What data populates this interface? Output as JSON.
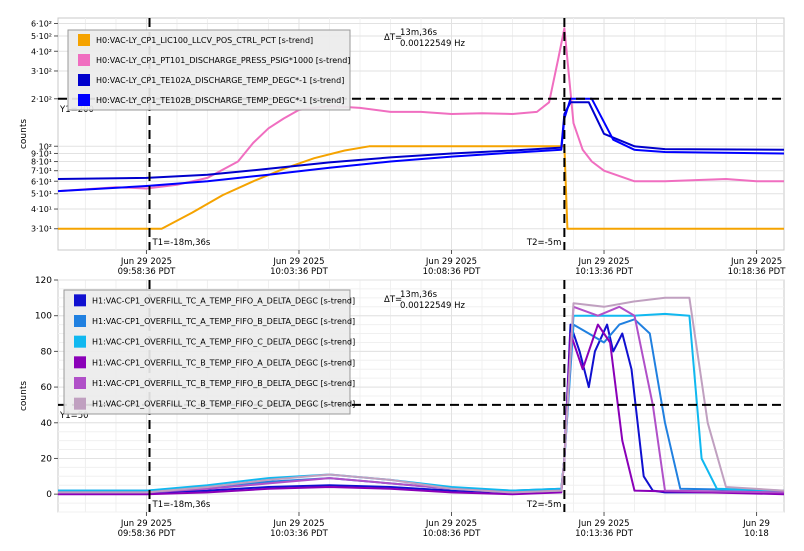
{
  "chart_data": [
    {
      "type": "line",
      "ylabel": "counts",
      "yscale": "log",
      "ylim": [
        22,
        650
      ],
      "y_ticks": [
        {
          "value": 30,
          "label": "3·10¹"
        },
        {
          "value": 40,
          "label": "4·10¹"
        },
        {
          "value": 50,
          "label": "5·10¹"
        },
        {
          "value": 60,
          "label": "6·10¹"
        },
        {
          "value": 70,
          "label": "7·10¹"
        },
        {
          "value": 80,
          "label": "8·10¹"
        },
        {
          "value": 90,
          "label": "9·10¹"
        },
        {
          "value": 100,
          "label": "10²"
        },
        {
          "value": 200,
          "label": "2·10²"
        },
        {
          "value": 300,
          "label": "3·10²"
        },
        {
          "value": 400,
          "label": "4·10²"
        },
        {
          "value": 500,
          "label": "5·10²"
        },
        {
          "value": 600,
          "label": "6·10²"
        }
      ],
      "x_ticks": [
        {
          "value": 0,
          "date": "Jun 29 2025",
          "time": "09:58:36 PDT"
        },
        {
          "value": 5,
          "date": "Jun 29 2025",
          "time": "10:03:36 PDT"
        },
        {
          "value": 10,
          "date": "Jun 29 2025",
          "time": "10:08:36 PDT"
        },
        {
          "value": 15,
          "date": "Jun 29 2025",
          "time": "10:13:36 PDT"
        },
        {
          "value": 20,
          "date": "Jun 29 2025",
          "time": "10:18:36 PDT"
        }
      ],
      "xlim": [
        -2.9,
        20.9
      ],
      "cursor_y": {
        "value": 200,
        "label": "Y1=200"
      },
      "cursor_x1": {
        "value": 0.1,
        "label": "T1=-18m,36s"
      },
      "cursor_x2": {
        "value": 13.7,
        "label": "T2=-5m"
      },
      "delta": {
        "prefix": "ΔT=",
        "time": "13m,36s",
        "freq": "0.00122549 Hz"
      },
      "series": [
        {
          "name": "H0:VAC-LY_CP1_LIC100_LLCV_POS_CTRL_PCT [s-trend]",
          "color": "#f5a300",
          "x": [
            -2.9,
            0.1,
            0.5,
            1.5,
            2.5,
            3.5,
            4.5,
            5.5,
            6.5,
            7.3,
            9.9,
            10.2,
            13.7,
            13.8,
            20.9
          ],
          "y": [
            30,
            30,
            30,
            38,
            49,
            60,
            72,
            84,
            94,
            100,
            100,
            100,
            100,
            30,
            30
          ]
        },
        {
          "name": "H0:VAC-LY_CP1_PT101_DISCHARGE_PRESS_PSIG*1000 [s-trend]",
          "color": "#f06ec0",
          "x": [
            -2.9,
            -1,
            0,
            1,
            2,
            3,
            3.5,
            4,
            4.5,
            5,
            6,
            7,
            8,
            9,
            10,
            11,
            12,
            12.8,
            13.2,
            13.5,
            13.7,
            14,
            14.3,
            14.6,
            15,
            16,
            17,
            18,
            19,
            20,
            20.9
          ],
          "y": [
            52,
            55,
            54,
            57,
            63,
            80,
            105,
            130,
            150,
            170,
            180,
            175,
            165,
            165,
            160,
            162,
            160,
            165,
            190,
            360,
            560,
            140,
            95,
            80,
            70,
            60,
            60,
            61,
            62,
            60,
            60
          ]
        },
        {
          "name": "H0:VAC-LY_CP1_TE102A_DISCHARGE_TEMP_DEGC*-1 [s-trend]",
          "color": "#0000cc",
          "x": [
            -2.9,
            0,
            2,
            4,
            6,
            8,
            10,
            12,
            13.6,
            13.7,
            13.9,
            14.5,
            15,
            16,
            17,
            20.9
          ],
          "y": [
            62,
            63,
            66,
            72,
            79,
            85,
            90,
            94,
            98,
            160,
            190,
            190,
            120,
            100,
            96,
            95
          ]
        },
        {
          "name": "H0:VAC-LY_CP1_TE102B_DISCHARGE_TEMP_DEGC*-1 [s-trend]",
          "color": "#0000ff",
          "x": [
            -2.9,
            0,
            2,
            4,
            6,
            8,
            10,
            12,
            13.6,
            13.7,
            13.9,
            14.6,
            15.3,
            16,
            17,
            20.9
          ],
          "y": [
            52,
            56,
            60,
            66,
            73,
            80,
            86,
            91,
            95,
            150,
            200,
            200,
            110,
            95,
            92,
            90
          ]
        }
      ]
    },
    {
      "type": "line",
      "ylabel": "counts",
      "ylim": [
        -10,
        120
      ],
      "y_ticks": [
        {
          "value": 0,
          "label": "0"
        },
        {
          "value": 20,
          "label": "20"
        },
        {
          "value": 40,
          "label": "40"
        },
        {
          "value": 60,
          "label": "60"
        },
        {
          "value": 80,
          "label": "80"
        },
        {
          "value": 100,
          "label": "100"
        },
        {
          "value": 120,
          "label": "120"
        }
      ],
      "x_ticks": [
        {
          "value": 0,
          "date": "Jun 29 2025",
          "time": "09:58:36 PDT"
        },
        {
          "value": 5,
          "date": "Jun 29 2025",
          "time": "10:03:36 PDT"
        },
        {
          "value": 10,
          "date": "Jun 29 2025",
          "time": "10:08:36 PDT"
        },
        {
          "value": 15,
          "date": "Jun 29 2025",
          "time": "10:13:36 PDT"
        },
        {
          "value": 20,
          "date": "Jun 29",
          "time": "10:18"
        }
      ],
      "xlim": [
        -2.9,
        20.9
      ],
      "cursor_y": {
        "value": 50,
        "label": "Y1=50"
      },
      "cursor_x1": {
        "value": 0.1,
        "label": "T1=-18m,36s"
      },
      "cursor_x2": {
        "value": 13.7,
        "label": "T2=-5m"
      },
      "delta": {
        "prefix": "ΔT=",
        "time": "13m,36s",
        "freq": "0.00122549 Hz"
      },
      "series": [
        {
          "name": "H1:VAC-CP1_OVERFILL_TC_A_TEMP_FIFO_A_DELTA_DEGC [s-trend]",
          "color": "#1010d0",
          "x": [
            -2.9,
            0,
            2,
            4,
            6,
            8,
            10,
            12,
            13.6,
            13.7,
            13.9,
            14.2,
            14.5,
            14.7,
            15.1,
            15.3,
            15.6,
            15.9,
            16.3,
            16.6,
            17,
            20.9
          ],
          "y": [
            1,
            1,
            2,
            4,
            5,
            4,
            2,
            1,
            2,
            20,
            95,
            80,
            60,
            80,
            95,
            80,
            90,
            70,
            10,
            2,
            1,
            1
          ]
        },
        {
          "name": "H1:VAC-CP1_OVERFILL_TC_A_TEMP_FIFO_B_DELTA_DEGC [s-trend]",
          "color": "#2080e0",
          "x": [
            -2.9,
            0,
            2,
            4,
            6,
            8,
            10,
            12,
            13.6,
            13.7,
            14,
            14.5,
            15,
            15.5,
            16,
            16.5,
            17,
            17.5,
            20.9
          ],
          "y": [
            2,
            2,
            4,
            7,
            9,
            6,
            3,
            2,
            3,
            20,
            95,
            90,
            85,
            95,
            98,
            90,
            40,
            3,
            2
          ]
        },
        {
          "name": "H1:VAC-CP1_OVERFILL_TC_A_TEMP_FIFO_C_DELTA_DEGC [s-trend]",
          "color": "#10b8f0",
          "x": [
            -2.9,
            0,
            2,
            4,
            6,
            8,
            10,
            12,
            13.6,
            13.7,
            14,
            15,
            16,
            17,
            17.8,
            18.2,
            18.7,
            20.9
          ],
          "y": [
            2,
            2,
            5,
            9,
            11,
            8,
            4,
            2,
            3,
            20,
            100,
            100,
            100,
            101,
            100,
            20,
            3,
            2
          ]
        },
        {
          "name": "H1:VAC-CP1_OVERFILL_TC_B_TEMP_FIFO_A_DELTA_DEGC [s-trend]",
          "color": "#8a00b8",
          "x": [
            -2.9,
            0,
            2,
            4,
            6,
            8,
            10,
            12,
            13.6,
            13.7,
            13.9,
            14.3,
            14.8,
            15.2,
            15.6,
            16,
            20.9
          ],
          "y": [
            0,
            0,
            1,
            3,
            4,
            3,
            1,
            0,
            1,
            20,
            90,
            70,
            95,
            85,
            30,
            2,
            0
          ]
        },
        {
          "name": "H1:VAC-CP1_OVERFILL_TC_B_TEMP_FIFO_B_DELTA_DEGC [s-trend]",
          "color": "#b050c8",
          "x": [
            -2.9,
            0,
            2,
            4,
            6,
            8,
            10,
            12,
            13.6,
            13.7,
            14,
            14.8,
            15.5,
            16,
            16.6,
            17,
            20.9
          ],
          "y": [
            1,
            1,
            3,
            6,
            9,
            6,
            3,
            1,
            2,
            20,
            105,
            100,
            105,
            100,
            50,
            2,
            1
          ]
        },
        {
          "name": "H1:VAC-CP1_OVERFILL_TC_B_TEMP_FIFO_C_DELTA_DEGC [s-trend]",
          "color": "#c0a0c0",
          "x": [
            -2.9,
            0,
            2,
            4,
            6,
            8,
            10,
            12,
            13.6,
            13.7,
            14,
            15,
            16,
            17,
            17.8,
            18.4,
            19,
            20.9
          ],
          "y": [
            1,
            1,
            4,
            8,
            11,
            8,
            3,
            1,
            2,
            20,
            107,
            105,
            108,
            110,
            110,
            40,
            4,
            2
          ]
        }
      ]
    }
  ]
}
